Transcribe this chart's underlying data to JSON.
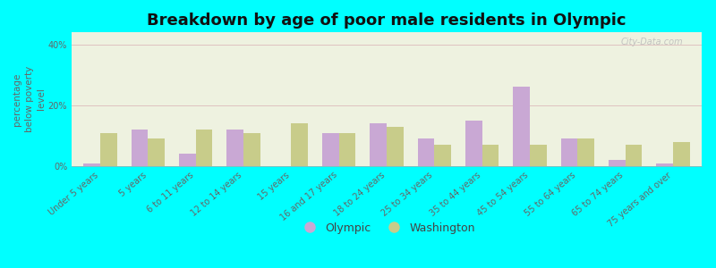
{
  "title": "Breakdown by age of poor male residents in Olympic",
  "ylabel": "percentage\nbelow poverty\nlevel",
  "categories": [
    "Under 5 years",
    "5 years",
    "6 to 11 years",
    "12 to 14 years",
    "15 years",
    "16 and 17 years",
    "18 to 24 years",
    "25 to 34 years",
    "35 to 44 years",
    "45 to 54 years",
    "55 to 64 years",
    "65 to 74 years",
    "75 years and over"
  ],
  "olympic_values": [
    1.0,
    12.0,
    4.0,
    12.0,
    0.0,
    11.0,
    14.0,
    9.0,
    15.0,
    26.0,
    9.0,
    2.0,
    1.0
  ],
  "washington_values": [
    11.0,
    9.0,
    12.0,
    11.0,
    14.0,
    11.0,
    13.0,
    7.0,
    7.0,
    7.0,
    9.0,
    7.0,
    8.0
  ],
  "olympic_color": "#c9a8d4",
  "washington_color": "#c8cc8a",
  "background_color": "#00ffff",
  "plot_bg": "#eef2e0",
  "yticks": [
    0,
    20,
    40
  ],
  "ylim": [
    0,
    44
  ],
  "bar_width": 0.35,
  "title_fontsize": 13,
  "axis_label_fontsize": 7.5,
  "tick_fontsize": 7.0,
  "legend_fontsize": 9,
  "watermark_text": "City-Data.com"
}
